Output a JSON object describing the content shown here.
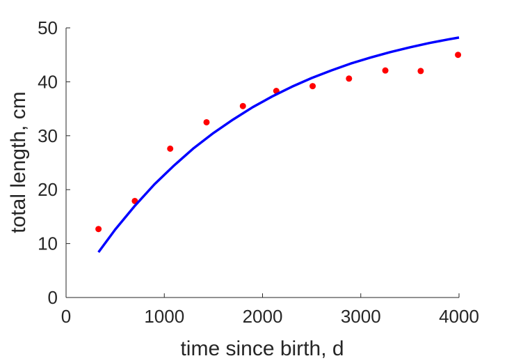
{
  "chart_data": {
    "type": "scatter",
    "title": "",
    "xlabel": "time since birth, d",
    "ylabel": "total length, cm",
    "xlim": [
      0,
      4000
    ],
    "ylim": [
      0,
      50
    ],
    "xticks": [
      0,
      1000,
      2000,
      3000,
      4000
    ],
    "xtick_labels": [
      "0",
      "1000",
      "2000",
      "3000",
      "4000"
    ],
    "yticks": [
      0,
      10,
      20,
      30,
      40,
      50
    ],
    "ytick_labels": [
      "0",
      "10",
      "20",
      "30",
      "40",
      "50"
    ],
    "grid": false,
    "legend": "none",
    "series": [
      {
        "kind": "points",
        "color": "#ff0000",
        "x": [
          330,
          700,
          1060,
          1430,
          1800,
          2140,
          2510,
          2880,
          3250,
          3610,
          3990
        ],
        "y": [
          12.7,
          17.9,
          27.6,
          32.5,
          35.5,
          38.3,
          39.2,
          40.6,
          42.1,
          42.0,
          45.0
        ]
      },
      {
        "kind": "line",
        "color": "#0000ff",
        "x": [
          330,
          500,
          700,
          900,
          1100,
          1300,
          1500,
          1700,
          1900,
          2100,
          2300,
          2500,
          2700,
          2900,
          3100,
          3300,
          3500,
          3700,
          3900,
          4000
        ],
        "y": [
          8.4,
          12.6,
          17.0,
          21.0,
          24.5,
          27.7,
          30.5,
          33.0,
          35.3,
          37.3,
          39.1,
          40.7,
          42.1,
          43.4,
          44.5,
          45.5,
          46.4,
          47.2,
          47.9,
          48.2
        ]
      }
    ]
  }
}
